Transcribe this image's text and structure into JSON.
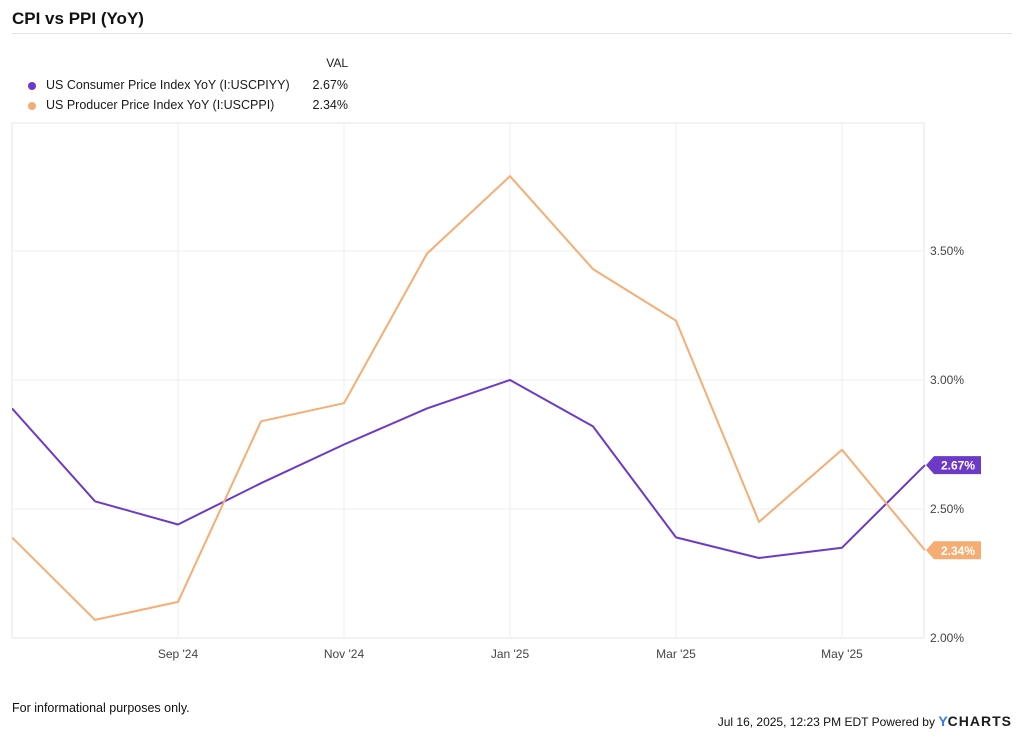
{
  "header": {
    "title": "CPI vs PPI (YoY)"
  },
  "legend": {
    "value_header": "VAL",
    "items": [
      {
        "name": "US Consumer Price Index YoY (I:USCPIYY)",
        "value": "2.67%",
        "color": "#6c3ac7"
      },
      {
        "name": "US Producer Price Index YoY (I:USCPPI)",
        "value": "2.34%",
        "color": "#f6ad74"
      }
    ]
  },
  "chart_data": {
    "type": "line",
    "title": "CPI vs PPI (YoY)",
    "x": [
      "2024-08",
      "2024-09",
      "2024-10",
      "2024-11",
      "2024-12",
      "2025-01",
      "2025-02",
      "2025-03",
      "2025-04",
      "2025-05",
      "2025-06"
    ],
    "x_tick_labels": [
      "Sep '24",
      "Nov '24",
      "Jan '25",
      "Mar '25",
      "May '25"
    ],
    "x_tick_values": [
      "2024-09",
      "2024-11",
      "2025-01",
      "2025-03",
      "2025-05"
    ],
    "y_tick_labels": [
      "2.00%",
      "2.50%",
      "3.00%",
      "3.50%"
    ],
    "y_tick_values": [
      2.0,
      2.5,
      3.0,
      3.5
    ],
    "ylim": [
      2.0,
      4.0
    ],
    "grid": true,
    "series": [
      {
        "name": "US Consumer Price Index YoY (I:USCPIYY)",
        "color": "#6c3ac7",
        "values": [
          2.53,
          2.44,
          2.6,
          2.75,
          2.89,
          3.0,
          2.82,
          2.39,
          2.31,
          2.35,
          2.67
        ],
        "end_label": "2.67%"
      },
      {
        "name": "US Producer Price Index YoY (I:USCPPI)",
        "color": "#f6ad74",
        "values": [
          2.07,
          2.14,
          2.84,
          2.91,
          3.49,
          3.79,
          3.43,
          3.23,
          2.45,
          2.73,
          2.34
        ],
        "end_label": "2.34%"
      }
    ]
  },
  "footer": {
    "note": "For informational purposes only.",
    "stamp": "Jul 16, 2025, 12:23 PM EDT Powered by",
    "brand_y": "Y",
    "brand_rest": "CHARTS"
  }
}
